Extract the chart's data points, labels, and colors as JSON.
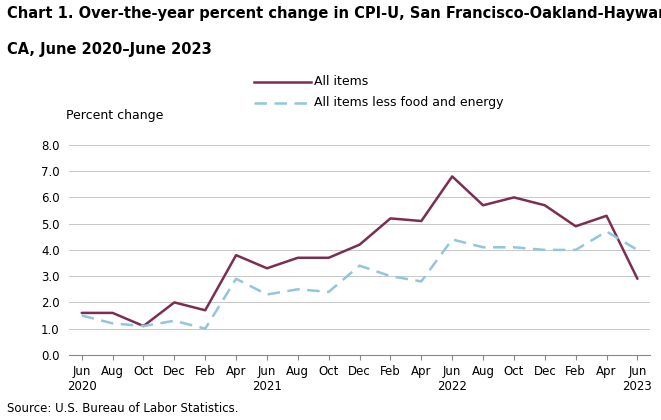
{
  "title_line1": "Chart 1. Over-the-year percent change in CPI-U, San Francisco-Oakland-Hayward,",
  "title_line2": "CA, June 2020–June 2023",
  "ylabel": "Percent change",
  "source": "Source: U.S. Bureau of Labor Statistics.",
  "ylim": [
    0.0,
    8.0
  ],
  "yticks": [
    0.0,
    1.0,
    2.0,
    3.0,
    4.0,
    5.0,
    6.0,
    7.0,
    8.0
  ],
  "all_items_color": "#7B2D52",
  "core_color": "#92C5DE",
  "all_items_label": "All items",
  "core_label": "All items less food and energy",
  "x_labels": [
    "Jun\n2020",
    "Aug",
    "Oct",
    "Dec",
    "Feb",
    "Apr",
    "Jun\n2021",
    "Aug",
    "Oct",
    "Dec",
    "Feb",
    "Apr",
    "Jun\n2022",
    "Aug",
    "Oct",
    "Dec",
    "Feb",
    "Apr",
    "Jun\n2023"
  ],
  "all_items_y": [
    1.6,
    1.6,
    1.1,
    2.0,
    1.7,
    3.8,
    3.3,
    3.7,
    3.7,
    4.2,
    5.2,
    5.1,
    6.8,
    5.7,
    6.0,
    5.7,
    4.9,
    5.3,
    2.9
  ],
  "core_y": [
    1.5,
    1.2,
    1.1,
    1.3,
    1.0,
    2.9,
    2.3,
    2.5,
    2.4,
    3.4,
    3.0,
    2.8,
    4.4,
    4.1,
    4.1,
    4.0,
    4.0,
    4.7,
    4.0
  ],
  "bg_color": "#ffffff",
  "grid_color": "#c8c8c8",
  "spine_color": "#888888",
  "title_fontsize": 10.5,
  "tick_fontsize": 8.5,
  "ylabel_fontsize": 9.0,
  "legend_fontsize": 9.0,
  "source_fontsize": 8.5
}
